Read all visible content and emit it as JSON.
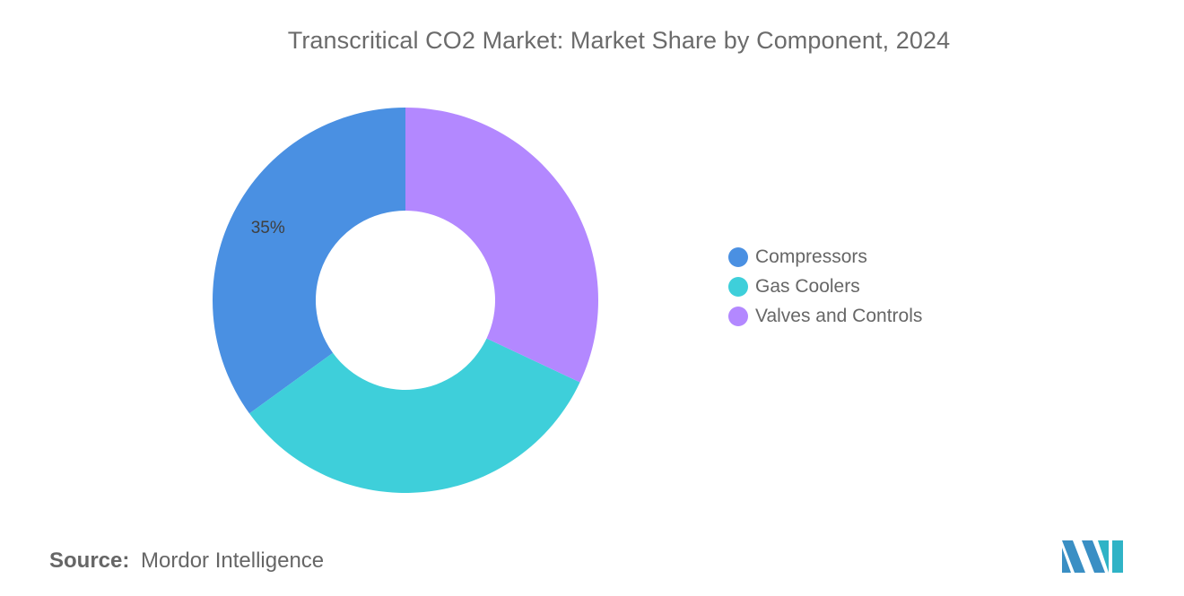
{
  "chart_data": {
    "type": "pie",
    "title": "Transcritical CO2 Market: Market Share by Component, 2024",
    "donut": true,
    "categories": [
      "Compressors",
      "Gas Coolers",
      "Valves and Controls"
    ],
    "values": [
      35,
      33,
      32
    ],
    "colors": [
      "#4a90e2",
      "#3ecfda",
      "#b388ff"
    ],
    "data_labels": [
      "35%",
      "",
      ""
    ],
    "legend_position": "right"
  },
  "source": {
    "prefix": "Source:",
    "text": "Mordor Intelligence"
  },
  "logo": {
    "icon": "mordor-intelligence-logo-icon",
    "colors": [
      "#3a8fc4",
      "#2fb3c6"
    ]
  }
}
